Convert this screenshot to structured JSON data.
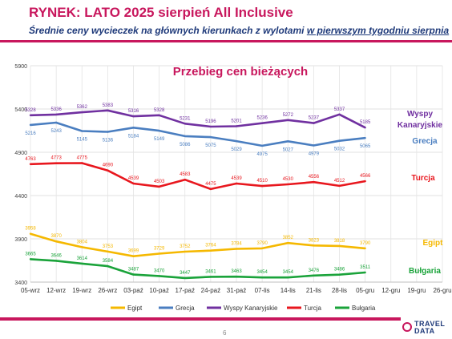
{
  "header": {
    "title": "RYNEK: LATO 2025 sierpień All Inclusive",
    "subtitle_main": "Średnie ceny wycieczek na głównych kierunkach z wylotami ",
    "subtitle_underlined": "w pierwszym tygodniu sierpnia"
  },
  "footer": {
    "page_number": "6",
    "logo_line1": "TRAVEL",
    "logo_line2": "DATA"
  },
  "colors": {
    "brand": "#c8175d",
    "navy": "#1f3a7a"
  },
  "chart_data": {
    "type": "line",
    "title": "Przebieg cen bieżących",
    "categories": [
      "05-wrz",
      "12-wrz",
      "19-wrz",
      "26-wrz",
      "03-paź",
      "10-paź",
      "17-paź",
      "24-paź",
      "31-paź",
      "07-lis",
      "14-lis",
      "21-lis",
      "28-lis",
      "05-gru",
      "12-gru",
      "19-gru",
      "26-gru"
    ],
    "ylim": [
      3400,
      5900
    ],
    "yticks": [
      3400,
      3900,
      4400,
      4900,
      5400,
      5900
    ],
    "grid": true,
    "legend_position": "bottom",
    "series": [
      {
        "name": "Egipt",
        "color": "#f5b800",
        "label_color": "#f5b800",
        "end_label": "Egipt",
        "values": [
          3958,
          3870,
          3804,
          3753,
          3699,
          3729,
          3752,
          3764,
          3784,
          3790,
          3852,
          3823,
          3818,
          3790,
          null,
          null,
          null
        ]
      },
      {
        "name": "Grecja",
        "color": "#4a7ec0",
        "label_color": "#4a7ec0",
        "end_label": "Grecja",
        "values": [
          5216,
          5243,
          5145,
          5136,
          5184,
          5149,
          5086,
          5075,
          5029,
          4975,
          5027,
          4979,
          5032,
          5065,
          null,
          null,
          null
        ]
      },
      {
        "name": "Wyspy Kanaryjskie",
        "color": "#7030a0",
        "label_color": "#7030a0",
        "end_label": "Wyspy Kanaryjskie",
        "values": [
          5328,
          5336,
          5362,
          5383,
          5316,
          5328,
          5231,
          5196,
          5201,
          5236,
          5272,
          5237,
          5337,
          5185,
          null,
          null,
          null
        ]
      },
      {
        "name": "Turcja",
        "color": "#e8171e",
        "label_color": "#e8171e",
        "end_label": "Turcja",
        "values": [
          4763,
          4773,
          4775,
          4690,
          4539,
          4503,
          4583,
          4475,
          4539,
          4510,
          4530,
          4556,
          4512,
          4566,
          null,
          null,
          null
        ]
      },
      {
        "name": "Bułgaria",
        "color": "#1aa33a",
        "label_color": "#1aa33a",
        "end_label": "Bułgaria",
        "values": [
          3665,
          3646,
          3614,
          3584,
          3487,
          3470,
          3447,
          3461,
          3463,
          3454,
          3454,
          3476,
          3486,
          3511,
          null,
          null,
          null
        ]
      }
    ]
  }
}
